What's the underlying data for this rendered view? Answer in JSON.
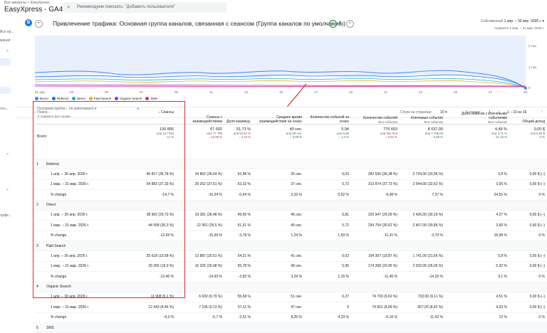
{
  "topbar": {
    "breadcrumb": "Все аккаунты > EasyXpress",
    "property": "EasyXpress - GA4",
    "search_placeholder": "Рекомендуем поискать: \"Добавить пользователя\""
  },
  "sidebar": {
    "items": [
      "Все ер...",
      "мания",
      "",
      "",
      "",
      "",
      "точ...",
      "",
      "",
      "трфе..."
    ]
  },
  "header": {
    "badge": "B",
    "title": "Привлечение трафика: Основная группа каналов, связанная с сеансом (Группа каналов по умолчанию)",
    "date_label": "Собственный",
    "date_value": "1 апр. – 30 апр. 2026 г.",
    "compare": "Сравните 1 мар. – 31 мар. 2026 г."
  },
  "chart_data": {
    "type": "line",
    "x": [
      "01 апр.",
      "03",
      "05",
      "07",
      "09",
      "11",
      "13",
      "15",
      "17",
      "19",
      "21",
      "23",
      "25",
      "27",
      "29"
    ],
    "y_ticks": [
      "2 тыс.",
      "1 тыс.",
      "0"
    ],
    "series": [
      {
        "name": "Всего",
        "color": "#4285f4"
      },
      {
        "name": "Referral",
        "color": "#1a73e8"
      },
      {
        "name": "Direct",
        "color": "#12b5cb"
      },
      {
        "name": "Paid Search",
        "color": "#f9ab00"
      },
      {
        "name": "Organic Search",
        "color": "#9334e6"
      },
      {
        "name": "SMS",
        "color": "#e52592"
      }
    ]
  },
  "toolbar": {
    "search": "Поиск...",
    "rows_label": "Строк на странице:",
    "rows_value": "10",
    "goto_label": "К строке:",
    "goto_value": "1",
    "range": "1 – 10 из 16"
  },
  "table": {
    "dim_select": "Основная группа... по умолчанию)",
    "dim_show": "показать все строки",
    "headers": [
      {
        "t": "Сеансы",
        "s": ""
      },
      {
        "t": "Сеансы с взаимодействием",
        "s": ""
      },
      {
        "t": "Доля взаимод.",
        "s": ""
      },
      {
        "t": "Среднее время взаимодействия на сеанс",
        "s": ""
      },
      {
        "t": "Количество событий за сеанс",
        "s": ""
      },
      {
        "t": "Количество событий",
        "s": "Все события"
      },
      {
        "t": "Ключевые события",
        "s": "Все события"
      },
      {
        "t": "Доля сеансов с ключевыми событиями",
        "s": "Все события"
      },
      {
        "t": "Общий доход",
        "s": ""
      }
    ],
    "total": {
      "label": "Всего",
      "cells": [
        {
          "v": "130 856",
          "a": "или 147 032",
          "c": "↓ 11 %"
        },
        {
          "v": "67 692",
          "a": "или 77 798",
          "c": "↓ 12,99 %"
        },
        {
          "v": "51,73 %",
          "a": "или 52,91 %",
          "c": "↓ 2,23 %"
        },
        {
          "v": "40 сек.",
          "a": "или 39 сек.",
          "c": "↑ 3,08 %"
        },
        {
          "v": "5,94",
          "a": "или 5,86",
          "c": "↑ 1,4 %"
        },
        {
          "v": "776 653",
          "a": "или 831 910",
          "c": "↓ 6,64 %"
        },
        {
          "v": "8 037,00",
          "a": "или 7 798,00",
          "c": "↑ 3,06 %"
        },
        {
          "v": "4,49 %",
          "a": "или 3,71 %",
          "c": "↑ 21,15 %"
        },
        {
          "v": "0,00 $",
          "a": "или 0,00 $",
          "c": "0 %"
        }
      ]
    },
    "groups": [
      {
        "num": "1",
        "name": "Referral",
        "rows": [
          {
            "label": "1 апр. – 30 апр. 2026 г.",
            "cells": [
              "46 817 (35,78 %)",
              "24 802 (36,64 %)",
              "52,98 %",
              "35 сек.",
              "6,03",
              "282 536 (36,38 %)",
              "2 729,00 (33,96 %)",
              "3,9 %",
              "0,00 $ (–)"
            ]
          },
          {
            "label": "1 мар. – 31 мар. 2026 г.",
            "cells": [
              "54 883 (37,33 %)",
              "29 262 (37,61 %)",
              "53,32 %",
              "37 сек.",
              "5,72",
              "313 874 (37,73 %)",
              "2 544,00 (32,62 %)",
              "3,05 %",
              "0,00 $ (–)"
            ]
          },
          {
            "label": "% change",
            "cells": [
              "-14,7 %",
              "-15,24 %",
              "-0,64 %",
              "3,33 %",
              "5,52 %",
              "-9,98 %",
              "7,27 %",
              "24,51 %",
              "0 %"
            ]
          }
        ]
      },
      {
        "num": "2",
        "name": "Direct",
        "rows": [
          {
            "label": "1 апр. – 30 апр. 2026 г.",
            "cells": [
              "38 902 (29,73 %)",
              "19 281 (28,48 %)",
              "49,56 %",
              "46 сек.",
              "5,81",
              "225 947 (29,09 %)",
              "2 426,00 (30,19 %)",
              "4,27 %",
              "0,00 $ (–)"
            ]
          },
          {
            "label": "1 мар. – 31 мар. 2026 г.",
            "cells": [
              "44 558 (30,3 %)",
              "22 951 (29,5 %)",
              "51,51 %",
              "45 сек.",
              "5,72",
              "254 754 (30,62 %)",
              "2 407,00 (30,86 %)",
              "3,66 %",
              "0,00 $ (–)"
            ]
          },
          {
            "label": "% change",
            "cells": [
              "-12,69 %",
              "-15,99 %",
              "-3,78 %",
              "1,24 %",
              "1,59 %",
              "-11,31 %",
              "0,79 %",
              "16,58 %",
              "0 %"
            ]
          }
        ]
      },
      {
        "num": "3",
        "name": "Paid Search",
        "rows": [
          {
            "label": "1 апр. – 30 апр. 2026 г.",
            "cells": [
              "25 618 (19,58 %)",
              "13 887 (20,51 %)",
              "54,21 %",
              "41 сек.",
              "6,02",
              "154 307 (19,87 %)",
              "1 741,00 (21,66 %)",
              "5,8 %",
              "0,00 $ (–)"
            ]
          },
          {
            "label": "1 мар. – 31 мар. 2026 г.",
            "cells": [
              "29 266 (19,9 %)",
              "16 325 (20,98 %)",
              "55,78 %",
              "40 сек.",
              "5,95",
              "174 268 (20,95 %)",
              "2 032,00 (26,05 %)",
              "5,32 %",
              "0,00 $ (–)"
            ]
          },
          {
            "label": "% change",
            "cells": [
              "-12,46 %",
              "-14,93 %",
              "-2,82 %",
              "3,24 %",
              "1,15 %",
              "-11,45 %",
              "-14,32 %",
              "9,1 %",
              "0 %"
            ]
          }
        ]
      },
      {
        "num": "4",
        "name": "Organic Search",
        "rows": [
          {
            "label": "1 апр. – 30 апр. 2026 г.",
            "cells": [
              "11 908 (9,1 %)",
              "6 630 (9,79 %)",
              "55,68 %",
              "51 сек.",
              "6,27",
              "74 703 (9,62 %)",
              "732,00 (9,11 %)",
              "4,51 %",
              "0,00 $ (–)"
            ]
          },
          {
            "label": "1 мар. – 31 мар. 2026 г.",
            "cells": [
              "12 443 (8,46 %)",
              "7 106 (9,13 %)",
              "57,11 %",
              "47 сек.",
              "6",
              "74 821 (8,99 %)",
              "657,00 (8,42 %)",
              "4,03 %",
              "0,00 $ (–)"
            ]
          },
          {
            "label": "% change",
            "cells": [
              "-4,3 %",
              "-6,7 %",
              "-2,51 %",
              "8,25 %",
              "4,33 %",
              "-0,16 %",
              "11,42 %",
              "12 %",
              "0 %"
            ]
          }
        ]
      }
    ],
    "next_group": {
      "num": "5",
      "name": "SMS"
    }
  }
}
